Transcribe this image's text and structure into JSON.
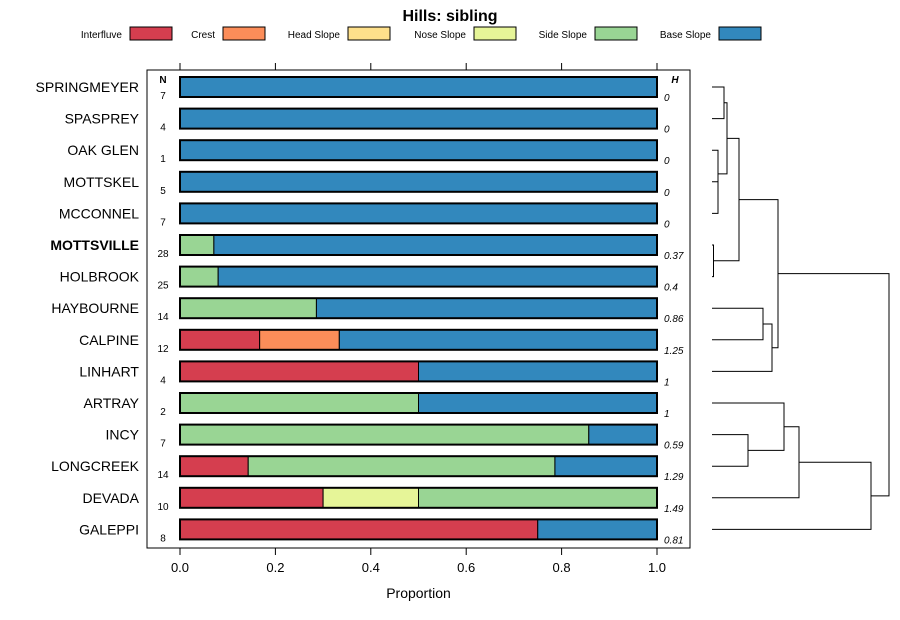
{
  "chart_data": {
    "type": "bar",
    "stacked": true,
    "orientation": "horizontal",
    "title": "Hills: sibling",
    "xlabel": "Proportion",
    "xlim": [
      0,
      1
    ],
    "x_ticks": [
      "0.0",
      "0.2",
      "0.4",
      "0.6",
      "0.8",
      "1.0"
    ],
    "x_tick_values": [
      0,
      0.2,
      0.4,
      0.6,
      0.8,
      1.0
    ],
    "n_header": "N",
    "h_header": "H",
    "legend_position": "top",
    "legend": [
      {
        "name": "Interfluve",
        "color": "#d53e4f"
      },
      {
        "name": "Crest",
        "color": "#fc8d59"
      },
      {
        "name": "Head Slope",
        "color": "#fee08b"
      },
      {
        "name": "Nose Slope",
        "color": "#e6f598"
      },
      {
        "name": "Side Slope",
        "color": "#99d594"
      },
      {
        "name": "Base Slope",
        "color": "#3288bd"
      }
    ],
    "rows": [
      {
        "label": "SPRINGMEYER",
        "bold": false,
        "n": "7",
        "h": "0",
        "values": [
          0,
          0,
          0,
          0,
          0,
          1
        ]
      },
      {
        "label": "SPASPREY",
        "bold": false,
        "n": "4",
        "h": "0",
        "values": [
          0,
          0,
          0,
          0,
          0,
          1
        ]
      },
      {
        "label": "OAK GLEN",
        "bold": false,
        "n": "1",
        "h": "0",
        "values": [
          0,
          0,
          0,
          0,
          0,
          1
        ]
      },
      {
        "label": "MOTTSKEL",
        "bold": false,
        "n": "5",
        "h": "0",
        "values": [
          0,
          0,
          0,
          0,
          0,
          1
        ]
      },
      {
        "label": "MCCONNEL",
        "bold": false,
        "n": "7",
        "h": "0",
        "values": [
          0,
          0,
          0,
          0,
          0,
          1
        ]
      },
      {
        "label": "MOTTSVILLE",
        "bold": true,
        "n": "28",
        "h": "0.37",
        "values": [
          0,
          0,
          0,
          0,
          0.071,
          0.929
        ]
      },
      {
        "label": "HOLBROOK",
        "bold": false,
        "n": "25",
        "h": "0.4",
        "values": [
          0,
          0,
          0,
          0,
          0.08,
          0.92
        ]
      },
      {
        "label": "HAYBOURNE",
        "bold": false,
        "n": "14",
        "h": "0.86",
        "values": [
          0,
          0,
          0,
          0,
          0.286,
          0.714
        ]
      },
      {
        "label": "CALPINE",
        "bold": false,
        "n": "12",
        "h": "1.25",
        "values": [
          0.167,
          0.167,
          0,
          0,
          0,
          0.666
        ]
      },
      {
        "label": "LINHART",
        "bold": false,
        "n": "4",
        "h": "1",
        "values": [
          0.5,
          0,
          0,
          0,
          0,
          0.5
        ]
      },
      {
        "label": "ARTRAY",
        "bold": false,
        "n": "2",
        "h": "1",
        "values": [
          0,
          0,
          0,
          0,
          0.5,
          0.5
        ]
      },
      {
        "label": "INCY",
        "bold": false,
        "n": "7",
        "h": "0.59",
        "values": [
          0,
          0,
          0,
          0,
          0.857,
          0.143
        ]
      },
      {
        "label": "LONGCREEK",
        "bold": false,
        "n": "14",
        "h": "1.29",
        "values": [
          0.143,
          0,
          0,
          0,
          0.643,
          0.214
        ]
      },
      {
        "label": "DEVADA",
        "bold": false,
        "n": "10",
        "h": "1.49",
        "values": [
          0.3,
          0,
          0,
          0.2,
          0.5,
          0
        ]
      },
      {
        "label": "GALEPPI",
        "bold": false,
        "n": "8",
        "h": "0.81",
        "values": [
          0.75,
          0,
          0,
          0,
          0,
          0.25
        ]
      }
    ],
    "dendrogram": {
      "merges": [
        {
          "a": "SPRINGMEYER",
          "b": "SPASPREY",
          "height": 0.04
        },
        {
          "a": "MOTTSKEL",
          "b": "MCCONNEL",
          "height": 0.02
        },
        {
          "a": "OAK GLEN",
          "b": "m2",
          "height": 0.02
        },
        {
          "a": "m1",
          "b": "m3",
          "height": 0.05
        },
        {
          "a": "MOTTSVILLE",
          "b": "HOLBROOK",
          "height": 0.005
        },
        {
          "a": "m4",
          "b": "m5",
          "height": 0.09
        },
        {
          "a": "HAYBOURNE",
          "b": "CALPINE",
          "height": 0.17
        },
        {
          "a": "m7",
          "b": "LINHART",
          "height": 0.2
        },
        {
          "a": "m6",
          "b": "m8",
          "height": 0.22
        },
        {
          "a": "INCY",
          "b": "LONGCREEK",
          "height": 0.12
        },
        {
          "a": "ARTRAY",
          "b": "m10",
          "height": 0.24
        },
        {
          "a": "m11",
          "b": "DEVADA",
          "height": 0.29
        },
        {
          "a": "m12",
          "b": "GALEPPI",
          "height": 0.53
        },
        {
          "a": "m9",
          "b": "m13",
          "height": 0.59
        }
      ]
    }
  }
}
